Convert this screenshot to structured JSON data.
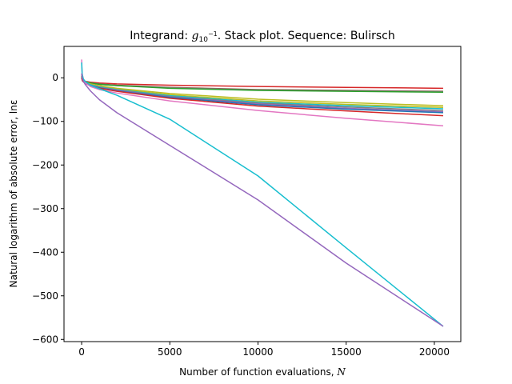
{
  "chart_data": {
    "type": "line",
    "title_prefix": "Integrand: ",
    "title_g": "g",
    "title_sub": "10",
    "title_sup": "−1",
    "title_suffix": ". Stack plot. Sequence: Bulirsch",
    "xlabel_text": "Number of function evaluations, ",
    "xlabel_var": "N",
    "ylabel": "Natural logarithm of absolute error, lnε",
    "xlim": [
      -1000,
      21500
    ],
    "ylim": [
      -605,
      72
    ],
    "xticks": [
      0,
      5000,
      10000,
      15000,
      20000
    ],
    "yticks": [
      0,
      -100,
      -200,
      -300,
      -400,
      -500,
      -600
    ],
    "xtick_labels": [
      "0",
      "5000",
      "10000",
      "15000",
      "20000"
    ],
    "ytick_labels": [
      "0",
      "−100",
      "−200",
      "−300",
      "−400",
      "−500",
      "−600"
    ],
    "series": [
      {
        "color": "#d62728",
        "x": [
          0,
          50,
          200,
          500,
          1000,
          2000,
          5000,
          10000,
          15000,
          20500
        ],
        "y": [
          5,
          -3,
          -8,
          -10,
          -12,
          -14,
          -17,
          -20,
          -22,
          -24
        ]
      },
      {
        "color": "#8c564b",
        "x": [
          0,
          50,
          200,
          500,
          1000,
          2000,
          5000,
          10000,
          15000,
          20500
        ],
        "y": [
          3,
          -4,
          -9,
          -12,
          -14,
          -17,
          -22,
          -27,
          -29,
          -31
        ]
      },
      {
        "color": "#7f7f7f",
        "x": [
          0,
          50,
          200,
          500,
          1000,
          2000,
          5000,
          10000,
          15000,
          20500
        ],
        "y": [
          2,
          -4,
          -9,
          -12,
          -15,
          -18,
          -23,
          -28,
          -30,
          -32
        ]
      },
      {
        "color": "#2ca02c",
        "x": [
          0,
          50,
          200,
          500,
          1000,
          2000,
          5000,
          10000,
          15000,
          20500
        ],
        "y": [
          4,
          -3,
          -9,
          -12,
          -15,
          -18,
          -24,
          -29,
          -31,
          -33
        ]
      },
      {
        "color": "#bcbd22",
        "x": [
          0,
          50,
          200,
          500,
          1000,
          2000,
          5000,
          10000,
          15000,
          20500
        ],
        "y": [
          2,
          -5,
          -10,
          -14,
          -18,
          -24,
          -36,
          -49,
          -57,
          -64
        ]
      },
      {
        "color": "#bcbd22",
        "x": [
          0,
          50,
          200,
          500,
          1000,
          2000,
          5000,
          10000,
          15000,
          20500
        ],
        "y": [
          1,
          -6,
          -11,
          -15,
          -20,
          -26,
          -39,
          -53,
          -61,
          -68
        ]
      },
      {
        "color": "#17becf",
        "x": [
          0,
          50,
          200,
          500,
          1000,
          2000,
          5000,
          10000,
          15000,
          20500
        ],
        "y": [
          1,
          -6,
          -11,
          -16,
          -21,
          -27,
          -41,
          -56,
          -64,
          -71
        ]
      },
      {
        "color": "#7f7f7f",
        "x": [
          0,
          50,
          200,
          500,
          1000,
          2000,
          5000,
          10000,
          15000,
          20500
        ],
        "y": [
          0,
          -7,
          -12,
          -17,
          -22,
          -28,
          -43,
          -58,
          -67,
          -75
        ]
      },
      {
        "color": "#9467bd",
        "x": [
          0,
          50,
          200,
          500,
          1000,
          2000,
          5000,
          10000,
          15000,
          20500
        ],
        "y": [
          0,
          -7,
          -12,
          -17,
          -22,
          -29,
          -44,
          -60,
          -70,
          -78
        ]
      },
      {
        "color": "#1f77b4",
        "x": [
          0,
          50,
          200,
          500,
          1000,
          2000,
          5000,
          10000,
          15000,
          20500
        ],
        "y": [
          0,
          -7,
          -13,
          -18,
          -23,
          -30,
          -45,
          -62,
          -72,
          -80
        ]
      },
      {
        "color": "#d62728",
        "x": [
          0,
          50,
          200,
          500,
          1000,
          2000,
          5000,
          10000,
          15000,
          20500
        ],
        "y": [
          0,
          -7,
          -13,
          -18,
          -24,
          -31,
          -47,
          -65,
          -76,
          -87
        ]
      },
      {
        "color": "#e377c2",
        "x": [
          0,
          30,
          100,
          200,
          500,
          1000,
          2000,
          5000,
          10000,
          15000,
          20500
        ],
        "y": [
          42,
          10,
          -5,
          -12,
          -20,
          -27,
          -35,
          -53,
          -75,
          -93,
          -110
        ]
      },
      {
        "color": "#17becf",
        "x": [
          0,
          30,
          100,
          200,
          500,
          1000,
          2000,
          5000,
          10000,
          15000,
          20500
        ],
        "y": [
          35,
          8,
          -3,
          -8,
          -17,
          -25,
          -40,
          -95,
          -225,
          -390,
          -570
        ]
      },
      {
        "color": "#9467bd",
        "x": [
          0,
          30,
          100,
          200,
          500,
          1000,
          2000,
          5000,
          10000,
          15000,
          20500
        ],
        "y": [
          10,
          0,
          -8,
          -15,
          -30,
          -50,
          -80,
          -155,
          -280,
          -425,
          -570
        ]
      }
    ]
  }
}
